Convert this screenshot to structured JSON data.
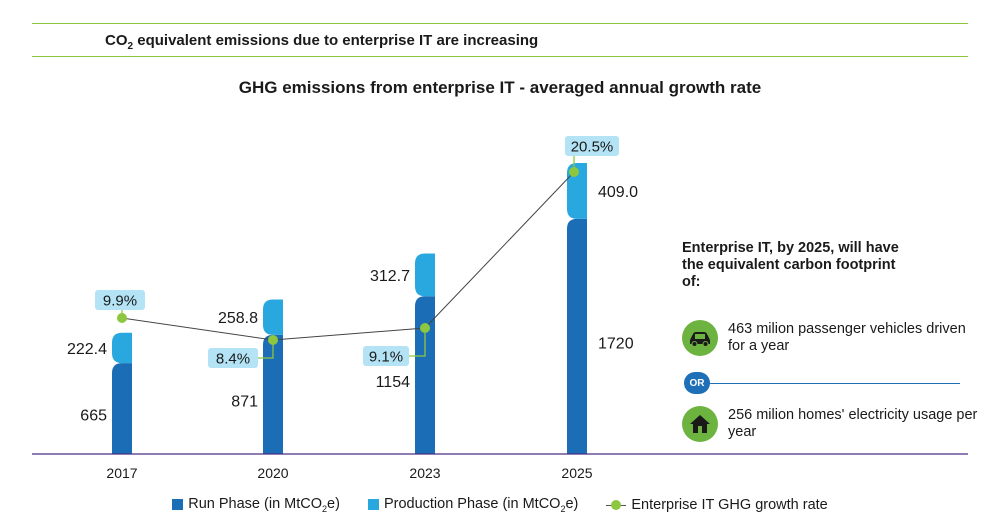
{
  "header": {
    "headline_pre": "CO",
    "headline_sub": "2",
    "headline_post": " equivalent emissions due to enterprise IT are increasing"
  },
  "chart_data": {
    "type": "bar",
    "title": "GHG emissions from enterprise IT - averaged annual growth rate",
    "categories": [
      "2017",
      "2020",
      "2023",
      "2025"
    ],
    "series": [
      {
        "name": "Run Phase (in MtCO2e)",
        "values": [
          665,
          871,
          1154,
          1720
        ],
        "color": "#1b6db5"
      },
      {
        "name": "Production Phase (in MtCO2e)",
        "values": [
          222.4,
          258.8,
          312.7,
          409.0
        ],
        "color": "#29a8e0"
      }
    ],
    "value_labels": {
      "run": [
        "665",
        "871",
        "1154",
        "1720"
      ],
      "production": [
        "222.4",
        "258.8",
        "312.7",
        "409.0"
      ]
    },
    "growth_rate": {
      "name": "Enterprise IT GHG growth rate",
      "values": [
        9.9,
        8.4,
        9.1,
        20.5
      ],
      "labels": [
        "9.9%",
        "8.4%",
        "9.1%",
        "20.5%"
      ],
      "color": "#8dc63f",
      "label_fill": "#b3e3f5"
    },
    "stacked": true
  },
  "legend": {
    "run_pre": "Run Phase (in MtCO",
    "run_sub": "2",
    "run_post": "e)",
    "prod_pre": "Production Phase (in MtCO",
    "prod_sub": "2",
    "prod_post": "e)",
    "growth": "Enterprise IT GHG growth rate"
  },
  "side_panel": {
    "intro": "Enterprise IT, by 2025, will have the equivalent carbon footprint of:",
    "vehicles": "463 milion passenger vehicles driven for a year",
    "vehicles_icon": "car-icon",
    "or": "OR",
    "homes": "256 milion homes' electricity usage per year",
    "homes_icon": "house-icon"
  }
}
